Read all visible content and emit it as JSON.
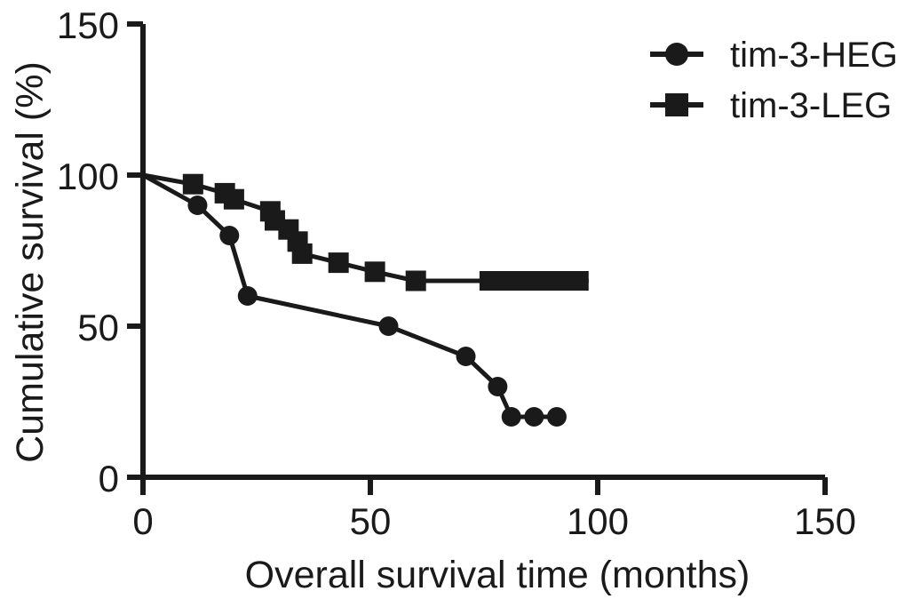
{
  "figure": {
    "background": "#ffffff",
    "ink_color": "#1a1a1a"
  },
  "chart_data": {
    "type": "line",
    "title": "",
    "xlabel": "Overall survival time (months)",
    "ylabel": "Cumulative survival (%)",
    "xlim": [
      0,
      150
    ],
    "ylim": [
      0,
      150
    ],
    "xticks": [
      0,
      50,
      100,
      150
    ],
    "yticks": [
      0,
      50,
      100,
      150
    ],
    "grid": false,
    "legend_position": "top-right",
    "series": [
      {
        "name": "tim-3-HEG",
        "marker": "circle",
        "color": "#1a1a1a",
        "points": [
          [
            0,
            100
          ],
          [
            12,
            90
          ],
          [
            19,
            80
          ],
          [
            23,
            60
          ],
          [
            54,
            50
          ],
          [
            71,
            40
          ],
          [
            78,
            30
          ],
          [
            81,
            20
          ],
          [
            86,
            20
          ],
          [
            91,
            20
          ]
        ]
      },
      {
        "name": "tim-3-LEG",
        "marker": "square",
        "color": "#1a1a1a",
        "points": [
          [
            0,
            100
          ],
          [
            11,
            97
          ],
          [
            18,
            94
          ],
          [
            20,
            92
          ],
          [
            28,
            88
          ],
          [
            29,
            85
          ],
          [
            32,
            82
          ],
          [
            34,
            78
          ],
          [
            35,
            74
          ],
          [
            43,
            71
          ],
          [
            51,
            68
          ],
          [
            60,
            65
          ]
        ],
        "censored_run": {
          "x_start": 74,
          "x_end": 98,
          "y": 65
        }
      }
    ]
  }
}
